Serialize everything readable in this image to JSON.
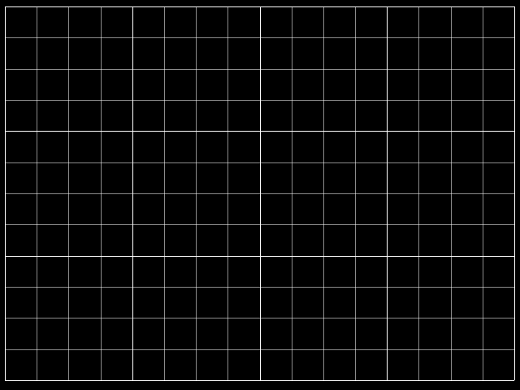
{
  "pattern": {
    "kind": "crosshatch-test-grid",
    "background_color": "#000000",
    "line_color": "#ffffff",
    "columns": 16,
    "rows": 12,
    "major_every": 4,
    "major_line_opacity": 1.0,
    "minor_line_opacity": 0.55
  }
}
